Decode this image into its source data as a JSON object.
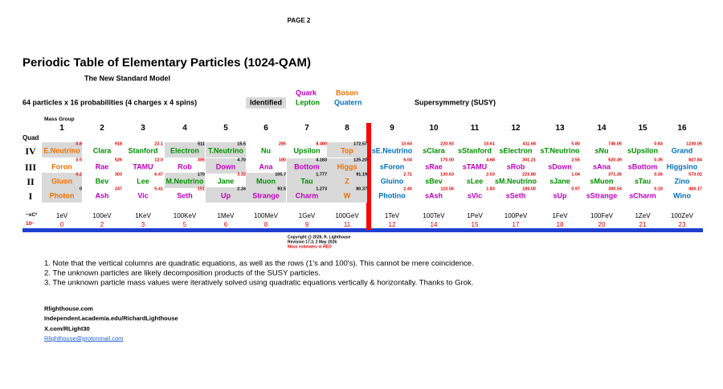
{
  "page_label": "PAGE 2",
  "title": "Periodic Table of Elementary Particles (1024-QAM)",
  "subtitle": "The New Standard Model",
  "legend": [
    {
      "label": "Quark",
      "color": "#c000c0"
    },
    {
      "label": "Boson",
      "color": "#f07000"
    },
    {
      "label": "Lepton",
      "color": "#009000"
    },
    {
      "label": "Quatern",
      "color": "#0070c0"
    }
  ],
  "caption": "64 particles x 16 probabilities (4 charges x 4 spins)",
  "identified_label": "Identified",
  "susy_label": "Supersymmetry (SUSY)",
  "table": {
    "mass_group_label": "Mass Group",
    "quad_label": "Quad",
    "columns": [
      "1",
      "2",
      "3",
      "4",
      "5",
      "6",
      "7",
      "8",
      "9",
      "10",
      "11",
      "12",
      "13",
      "14",
      "15",
      "16"
    ],
    "rows": [
      {
        "quad": "IV",
        "cells": [
          {
            "name": "E.Neutrino",
            "mass": "0.8",
            "color": "#f07000",
            "mass_color": "#e00000",
            "shaded": true
          },
          {
            "name": "Clara",
            "mass": "918",
            "color": "#009000",
            "mass_color": "#e00000",
            "shaded": false
          },
          {
            "name": "Stanford",
            "mass": "22.1",
            "color": "#009000",
            "mass_color": "#e00000",
            "shaded": false
          },
          {
            "name": "Electron",
            "mass": "511",
            "color": "#009000",
            "mass_color": "#000000",
            "shaded": true
          },
          {
            "name": "T.Neutrino",
            "mass": "15.5",
            "color": "#009000",
            "mass_color": "#000000",
            "shaded": true
          },
          {
            "name": "Nu",
            "mass": "285",
            "color": "#009000",
            "mass_color": "#e00000",
            "shaded": false
          },
          {
            "name": "Upsilon",
            "mass": "8.480",
            "color": "#009000",
            "mass_color": "#e00000",
            "shaded": false
          },
          {
            "name": "Top",
            "mass": "172.57",
            "color": "#f07000",
            "mass_color": "#000000",
            "shaded": true
          },
          {
            "name": "sE.Neutrino",
            "mass": "13.60",
            "color": "#0070c0",
            "mass_color": "#e00000",
            "shaded": false
          },
          {
            "name": "sClara",
            "mass": "220.93",
            "color": "#009000",
            "mass_color": "#e00000",
            "shaded": false
          },
          {
            "name": "sStanford",
            "mass": "10.61",
            "color": "#009000",
            "mass_color": "#e00000",
            "shaded": false
          },
          {
            "name": "sElectron",
            "mass": "411.68",
            "color": "#009000",
            "mass_color": "#e00000",
            "shaded": false
          },
          {
            "name": "sT.Neutrino",
            "mass": "5.80",
            "color": "#009000",
            "mass_color": "#e00000",
            "shaded": false
          },
          {
            "name": "sNu",
            "mass": "746.05",
            "color": "#009000",
            "mass_color": "#e00000",
            "shaded": false
          },
          {
            "name": "sUpsilon",
            "mass": "0.83",
            "color": "#009000",
            "mass_color": "#e00000",
            "shaded": false
          },
          {
            "name": "Grand",
            "mass": "1230.05",
            "color": "#0070c0",
            "mass_color": "#e00000",
            "shaded": false
          }
        ]
      },
      {
        "quad": "III",
        "cells": [
          {
            "name": "Foron",
            "mass": "0.5",
            "color": "#f07000",
            "mass_color": "#e00000",
            "shaded": false
          },
          {
            "name": "Rae",
            "mass": "526",
            "color": "#c000c0",
            "mass_color": "#e00000",
            "shaded": false
          },
          {
            "name": "TAMU",
            "mass": "12.0",
            "color": "#c000c0",
            "mass_color": "#e00000",
            "shaded": false
          },
          {
            "name": "Rob",
            "mass": "305",
            "color": "#c000c0",
            "mass_color": "#e00000",
            "shaded": false
          },
          {
            "name": "Down",
            "mass": "4.70",
            "color": "#c000c0",
            "mass_color": "#000000",
            "shaded": true
          },
          {
            "name": "Ana",
            "mass": "180",
            "color": "#c000c0",
            "mass_color": "#e00000",
            "shaded": false
          },
          {
            "name": "Bottom",
            "mass": "4.183",
            "color": "#c000c0",
            "mass_color": "#000000",
            "shaded": true
          },
          {
            "name": "Higgs",
            "mass": "125.20",
            "color": "#f07000",
            "mass_color": "#000000",
            "shaded": true
          },
          {
            "name": "sForon",
            "mass": "6.04",
            "color": "#0070c0",
            "mass_color": "#e00000",
            "shaded": false
          },
          {
            "name": "sRae",
            "mass": "170.00",
            "color": "#c000c0",
            "mass_color": "#e00000",
            "shaded": false
          },
          {
            "name": "sTAMU",
            "mass": "4.68",
            "color": "#c000c0",
            "mass_color": "#e00000",
            "shaded": false
          },
          {
            "name": "sRob",
            "mass": "301.21",
            "color": "#c000c0",
            "mass_color": "#e00000",
            "shaded": false
          },
          {
            "name": "sDown",
            "mass": "2.55",
            "color": "#c000c0",
            "mass_color": "#e00000",
            "shaded": false
          },
          {
            "name": "sAna",
            "mass": "520.49",
            "color": "#c000c0",
            "mass_color": "#e00000",
            "shaded": false
          },
          {
            "name": "sBottom",
            "mass": "0.35",
            "color": "#c000c0",
            "mass_color": "#e00000",
            "shaded": false
          },
          {
            "name": "Higgsino",
            "mass": "827.84",
            "color": "#0070c0",
            "mass_color": "#e00000",
            "shaded": false
          }
        ]
      },
      {
        "quad": "II",
        "cells": [
          {
            "name": "Gluon",
            "mass": "0.2",
            "color": "#f07000",
            "mass_color": "#e00000",
            "shaded": true
          },
          {
            "name": "Bev",
            "mass": "303",
            "color": "#009000",
            "mass_color": "#e00000",
            "shaded": false
          },
          {
            "name": "Lee",
            "mass": "6.47",
            "color": "#009000",
            "mass_color": "#e00000",
            "shaded": false
          },
          {
            "name": "M.Neutrino",
            "mass": "170",
            "color": "#009000",
            "mass_color": "#000000",
            "shaded": true
          },
          {
            "name": "Jane",
            "mass": "3.32",
            "color": "#009000",
            "mass_color": "#e00000",
            "shaded": false
          },
          {
            "name": "Muon",
            "mass": "105.7",
            "color": "#009000",
            "mass_color": "#000000",
            "shaded": true
          },
          {
            "name": "Tau",
            "mass": "1.777",
            "color": "#009000",
            "mass_color": "#000000",
            "shaded": true
          },
          {
            "name": "Z",
            "mass": "91.19",
            "color": "#f07000",
            "mass_color": "#000000",
            "shaded": true
          },
          {
            "name": "Gluino",
            "mass": "2.71",
            "color": "#0070c0",
            "mass_color": "#e00000",
            "shaded": false
          },
          {
            "name": "sBev",
            "mass": "130.63",
            "color": "#009000",
            "mass_color": "#e00000",
            "shaded": false
          },
          {
            "name": "sLee",
            "mass": "2.03",
            "color": "#009000",
            "mass_color": "#e00000",
            "shaded": false
          },
          {
            "name": "sM.Neutrino",
            "mass": "223.80",
            "color": "#009000",
            "mass_color": "#e00000",
            "shaded": false
          },
          {
            "name": "sJane",
            "mass": "1.04",
            "color": "#009000",
            "mass_color": "#e00000",
            "shaded": false
          },
          {
            "name": "sMuon",
            "mass": "371.26",
            "color": "#009000",
            "mass_color": "#e00000",
            "shaded": false
          },
          {
            "name": "sTau",
            "mass": "0.26",
            "color": "#009000",
            "mass_color": "#e00000",
            "shaded": false
          },
          {
            "name": "Zino",
            "mass": "573.02",
            "color": "#0070c0",
            "mass_color": "#e00000",
            "shaded": false
          }
        ]
      },
      {
        "quad": "I",
        "cells": [
          {
            "name": "Photon",
            "mass": "0",
            "color": "#f07000",
            "mass_color": "#000000",
            "shaded": true
          },
          {
            "name": "Ash",
            "mass": "247",
            "color": "#c000c0",
            "mass_color": "#e00000",
            "shaded": false
          },
          {
            "name": "Vic",
            "mass": "5.41",
            "color": "#c000c0",
            "mass_color": "#e00000",
            "shaded": false
          },
          {
            "name": "Seth",
            "mass": "151",
            "color": "#c000c0",
            "mass_color": "#e00000",
            "shaded": false
          },
          {
            "name": "Up",
            "mass": "2.16",
            "color": "#c000c0",
            "mass_color": "#000000",
            "shaded": true
          },
          {
            "name": "Strange",
            "mass": "93.5",
            "color": "#c000c0",
            "mass_color": "#000000",
            "shaded": true
          },
          {
            "name": "Charm",
            "mass": "1.273",
            "color": "#c000c0",
            "mass_color": "#000000",
            "shaded": true
          },
          {
            "name": "W",
            "mass": "80.37",
            "color": "#f07000",
            "mass_color": "#000000",
            "shaded": true
          },
          {
            "name": "Photino",
            "mass": "2.40",
            "color": "#0070c0",
            "mass_color": "#e00000",
            "shaded": false
          },
          {
            "name": "sAsh",
            "mass": "110.56",
            "color": "#c000c0",
            "mass_color": "#e00000",
            "shaded": false
          },
          {
            "name": "sVic",
            "mass": "1.83",
            "color": "#c000c0",
            "mass_color": "#e00000",
            "shaded": false
          },
          {
            "name": "sSeth",
            "mass": "184.00",
            "color": "#c000c0",
            "mass_color": "#e00000",
            "shaded": false
          },
          {
            "name": "sUp",
            "mass": "0.97",
            "color": "#c000c0",
            "mass_color": "#e00000",
            "shaded": false
          },
          {
            "name": "sStrange",
            "mass": "300.54",
            "color": "#c000c0",
            "mass_color": "#e00000",
            "shaded": false
          },
          {
            "name": "sCharm",
            "mass": "0.18",
            "color": "#c000c0",
            "mass_color": "#e00000",
            "shaded": false
          },
          {
            "name": "Wino",
            "mass": "460.17",
            "color": "#0070c0",
            "mass_color": "#e00000",
            "shaded": false
          }
        ]
      }
    ],
    "energy_label": "~xC²",
    "energies": [
      "1eV",
      "100eV",
      "1KeV",
      "100KeV",
      "1MeV",
      "100MeV",
      "1GeV",
      "100GeV",
      "1TeV",
      "100TeV",
      "1PeV",
      "100PeV",
      "1FeV",
      "100FeV",
      "1ZeV",
      "100ZeV"
    ],
    "exponent_label": "10ⁿ",
    "exponents": [
      0,
      2,
      3,
      5,
      6,
      8,
      9,
      11,
      12,
      14,
      15,
      17,
      18,
      20,
      21,
      23
    ]
  },
  "copyright": [
    "Copyright @ 2026, R. Lighthouse",
    "Revision 17.3,  2 May 2026",
    "Mass estimates in RED"
  ],
  "notes": [
    "1.  Note that the vertical columns are quadratic equations, as well as the rows (1's and 100's).  This cannot be mere coincidence.",
    "2.  The unknown particles are likely decomposition products of the SUSY particles.",
    "3.  The unknown particle mass values were iteratively solved using quadratic equations vertically & horizontally.  Thanks to Grok."
  ],
  "links": [
    "Rlighthouse.com",
    "Independent.academia.edu/RichardLighthouse",
    "X.com/RLight30",
    "Rlighthouse@protonmail.com"
  ]
}
